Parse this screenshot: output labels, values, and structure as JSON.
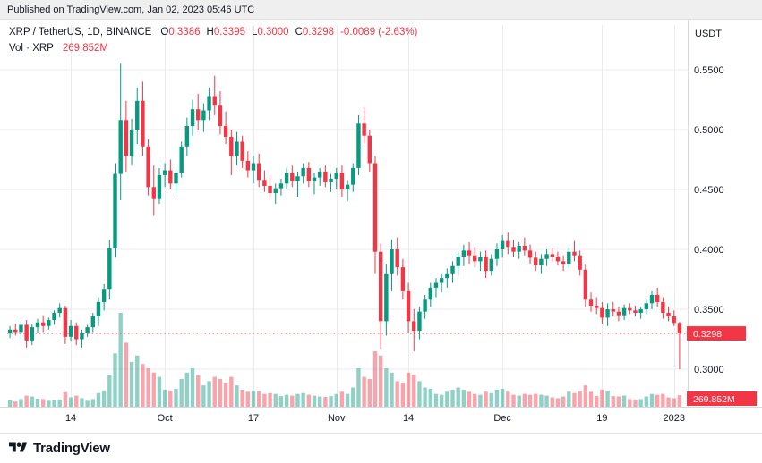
{
  "published_bar": {
    "text": "Published on TradingView.com, Jan 02, 2023 05:46 UTC"
  },
  "header": {
    "symbol": "XRP / TetherUS, 1D, BINANCE",
    "ohlc": [
      {
        "k": "O",
        "v": "0.3386"
      },
      {
        "k": "H",
        "v": "0.3395"
      },
      {
        "k": "L",
        "v": "0.3000"
      },
      {
        "k": "C",
        "v": "0.3298"
      }
    ],
    "change": "-0.0089 (-2.63%)",
    "volume_label": "Vol · XRP",
    "volume_value": "269.852M",
    "currency": "USDT"
  },
  "price_axis": {
    "labels": [
      "0.5500",
      "0.5000",
      "0.4500",
      "0.4000",
      "0.3500",
      "0.3000"
    ],
    "current_price_badge": "0.3298",
    "volume_badge": "269.852M"
  },
  "time_axis": {
    "ticks": [
      {
        "i": 11,
        "label": "14"
      },
      {
        "i": 28,
        "label": "Oct"
      },
      {
        "i": 44,
        "label": "17"
      },
      {
        "i": 59,
        "label": "Nov"
      },
      {
        "i": 72,
        "label": "14"
      },
      {
        "i": 89,
        "label": "Dec"
      },
      {
        "i": 107,
        "label": "19"
      },
      {
        "i": 120,
        "label": "2023"
      }
    ]
  },
  "footer": {
    "brand": "TradingView"
  },
  "colors": {
    "up": "#089981",
    "down": "#F23645",
    "up_volume": "rgba(8,153,129,0.45)",
    "down_volume": "rgba(242,54,69,0.45)",
    "grid": "#e9ebf0",
    "axis_line": "#d6d9e0",
    "badge": "#F23645",
    "text": "#131722"
  },
  "chart_data": {
    "type": "candlestick",
    "title": "XRP / TetherUS, 1D, BINANCE",
    "interval": "1D",
    "start_date": "2022-09-03",
    "currency": "USDT",
    "y_range": [
      0.3,
      0.55
    ],
    "grid": true,
    "last": {
      "open": 0.3386,
      "high": 0.3395,
      "low": 0.3,
      "close": 0.3298,
      "change": -0.0089,
      "change_pct": -2.63,
      "volume_m": 269.852
    },
    "volume_unit": "millions",
    "columns": [
      "open",
      "high",
      "low",
      "close",
      "volume_m"
    ],
    "candles": [
      [
        0.33,
        0.336,
        0.326,
        0.333,
        150
      ],
      [
        0.333,
        0.338,
        0.328,
        0.331,
        120
      ],
      [
        0.331,
        0.34,
        0.325,
        0.337,
        180
      ],
      [
        0.337,
        0.341,
        0.318,
        0.324,
        260
      ],
      [
        0.324,
        0.338,
        0.32,
        0.335,
        240
      ],
      [
        0.335,
        0.342,
        0.33,
        0.339,
        190
      ],
      [
        0.339,
        0.345,
        0.331,
        0.336,
        180
      ],
      [
        0.336,
        0.343,
        0.333,
        0.341,
        140
      ],
      [
        0.341,
        0.349,
        0.337,
        0.347,
        150
      ],
      [
        0.347,
        0.355,
        0.343,
        0.351,
        170
      ],
      [
        0.351,
        0.353,
        0.321,
        0.327,
        340
      ],
      [
        0.327,
        0.341,
        0.323,
        0.336,
        220
      ],
      [
        0.336,
        0.339,
        0.32,
        0.325,
        260
      ],
      [
        0.325,
        0.333,
        0.318,
        0.33,
        200
      ],
      [
        0.33,
        0.337,
        0.327,
        0.335,
        140
      ],
      [
        0.335,
        0.347,
        0.331,
        0.344,
        180
      ],
      [
        0.344,
        0.36,
        0.336,
        0.356,
        320
      ],
      [
        0.356,
        0.371,
        0.349,
        0.367,
        380
      ],
      [
        0.367,
        0.408,
        0.358,
        0.401,
        750
      ],
      [
        0.401,
        0.472,
        0.393,
        0.463,
        1250
      ],
      [
        0.463,
        0.555,
        0.441,
        0.508,
        2200
      ],
      [
        0.508,
        0.524,
        0.465,
        0.478,
        1500
      ],
      [
        0.478,
        0.509,
        0.47,
        0.5,
        1050
      ],
      [
        0.5,
        0.535,
        0.488,
        0.524,
        1200
      ],
      [
        0.524,
        0.54,
        0.478,
        0.486,
        1000
      ],
      [
        0.486,
        0.492,
        0.445,
        0.452,
        900
      ],
      [
        0.452,
        0.47,
        0.428,
        0.442,
        800
      ],
      [
        0.442,
        0.468,
        0.438,
        0.462,
        700
      ],
      [
        0.462,
        0.472,
        0.452,
        0.466,
        400
      ],
      [
        0.466,
        0.475,
        0.45,
        0.455,
        380
      ],
      [
        0.455,
        0.468,
        0.446,
        0.464,
        420
      ],
      [
        0.464,
        0.49,
        0.46,
        0.486,
        650
      ],
      [
        0.486,
        0.51,
        0.478,
        0.503,
        800
      ],
      [
        0.503,
        0.525,
        0.495,
        0.517,
        900
      ],
      [
        0.517,
        0.53,
        0.5,
        0.508,
        750
      ],
      [
        0.508,
        0.522,
        0.498,
        0.516,
        500
      ],
      [
        0.516,
        0.535,
        0.508,
        0.528,
        600
      ],
      [
        0.528,
        0.545,
        0.512,
        0.52,
        700
      ],
      [
        0.52,
        0.532,
        0.496,
        0.503,
        650
      ],
      [
        0.503,
        0.515,
        0.488,
        0.494,
        550
      ],
      [
        0.494,
        0.5,
        0.462,
        0.478,
        700
      ],
      [
        0.478,
        0.498,
        0.47,
        0.49,
        500
      ],
      [
        0.49,
        0.495,
        0.468,
        0.474,
        400
      ],
      [
        0.474,
        0.482,
        0.46,
        0.466,
        350
      ],
      [
        0.466,
        0.478,
        0.455,
        0.472,
        380
      ],
      [
        0.472,
        0.48,
        0.452,
        0.458,
        360
      ],
      [
        0.458,
        0.466,
        0.448,
        0.453,
        300
      ],
      [
        0.453,
        0.462,
        0.442,
        0.447,
        320
      ],
      [
        0.447,
        0.455,
        0.438,
        0.451,
        300
      ],
      [
        0.451,
        0.459,
        0.445,
        0.455,
        250
      ],
      [
        0.455,
        0.468,
        0.45,
        0.464,
        280
      ],
      [
        0.464,
        0.47,
        0.452,
        0.457,
        260
      ],
      [
        0.457,
        0.465,
        0.444,
        0.461,
        300
      ],
      [
        0.461,
        0.472,
        0.455,
        0.468,
        320
      ],
      [
        0.468,
        0.473,
        0.452,
        0.457,
        280
      ],
      [
        0.457,
        0.464,
        0.446,
        0.46,
        260
      ],
      [
        0.46,
        0.468,
        0.453,
        0.465,
        240
      ],
      [
        0.465,
        0.47,
        0.452,
        0.456,
        230
      ],
      [
        0.456,
        0.463,
        0.448,
        0.459,
        250
      ],
      [
        0.459,
        0.468,
        0.45,
        0.464,
        300
      ],
      [
        0.464,
        0.47,
        0.444,
        0.45,
        350
      ],
      [
        0.45,
        0.458,
        0.44,
        0.454,
        300
      ],
      [
        0.454,
        0.472,
        0.448,
        0.468,
        450
      ],
      [
        0.468,
        0.512,
        0.462,
        0.505,
        900
      ],
      [
        0.505,
        0.518,
        0.488,
        0.495,
        700
      ],
      [
        0.495,
        0.5,
        0.465,
        0.472,
        650
      ],
      [
        0.472,
        0.478,
        0.38,
        0.398,
        1300
      ],
      [
        0.398,
        0.405,
        0.317,
        0.34,
        1200
      ],
      [
        0.34,
        0.388,
        0.328,
        0.38,
        900
      ],
      [
        0.38,
        0.408,
        0.365,
        0.4,
        800
      ],
      [
        0.4,
        0.41,
        0.378,
        0.385,
        600
      ],
      [
        0.385,
        0.392,
        0.358,
        0.365,
        550
      ],
      [
        0.365,
        0.372,
        0.33,
        0.34,
        800
      ],
      [
        0.34,
        0.35,
        0.315,
        0.332,
        750
      ],
      [
        0.332,
        0.352,
        0.325,
        0.348,
        600
      ],
      [
        0.348,
        0.362,
        0.342,
        0.358,
        450
      ],
      [
        0.358,
        0.372,
        0.352,
        0.368,
        420
      ],
      [
        0.368,
        0.376,
        0.36,
        0.372,
        300
      ],
      [
        0.372,
        0.38,
        0.364,
        0.376,
        280
      ],
      [
        0.376,
        0.384,
        0.368,
        0.38,
        350
      ],
      [
        0.38,
        0.39,
        0.372,
        0.386,
        400
      ],
      [
        0.386,
        0.398,
        0.378,
        0.394,
        450
      ],
      [
        0.394,
        0.404,
        0.386,
        0.399,
        400
      ],
      [
        0.399,
        0.406,
        0.388,
        0.395,
        350
      ],
      [
        0.395,
        0.402,
        0.385,
        0.39,
        300
      ],
      [
        0.39,
        0.398,
        0.382,
        0.394,
        280
      ],
      [
        0.394,
        0.399,
        0.376,
        0.382,
        350
      ],
      [
        0.382,
        0.396,
        0.378,
        0.392,
        320
      ],
      [
        0.392,
        0.405,
        0.386,
        0.4,
        400
      ],
      [
        0.4,
        0.412,
        0.393,
        0.407,
        420
      ],
      [
        0.407,
        0.414,
        0.396,
        0.402,
        350
      ],
      [
        0.402,
        0.408,
        0.394,
        0.398,
        280
      ],
      [
        0.398,
        0.406,
        0.392,
        0.403,
        260
      ],
      [
        0.403,
        0.41,
        0.395,
        0.399,
        300
      ],
      [
        0.399,
        0.404,
        0.388,
        0.393,
        280
      ],
      [
        0.393,
        0.398,
        0.382,
        0.387,
        300
      ],
      [
        0.387,
        0.396,
        0.38,
        0.392,
        280
      ],
      [
        0.392,
        0.4,
        0.386,
        0.396,
        260
      ],
      [
        0.396,
        0.401,
        0.39,
        0.394,
        220
      ],
      [
        0.394,
        0.398,
        0.387,
        0.39,
        200
      ],
      [
        0.39,
        0.395,
        0.382,
        0.388,
        240
      ],
      [
        0.388,
        0.402,
        0.384,
        0.398,
        350
      ],
      [
        0.398,
        0.407,
        0.39,
        0.395,
        320
      ],
      [
        0.395,
        0.399,
        0.378,
        0.383,
        360
      ],
      [
        0.383,
        0.388,
        0.352,
        0.358,
        500
      ],
      [
        0.358,
        0.364,
        0.348,
        0.353,
        350
      ],
      [
        0.353,
        0.36,
        0.346,
        0.351,
        250
      ],
      [
        0.351,
        0.356,
        0.338,
        0.343,
        400
      ],
      [
        0.343,
        0.355,
        0.336,
        0.35,
        380
      ],
      [
        0.35,
        0.356,
        0.344,
        0.348,
        250
      ],
      [
        0.348,
        0.352,
        0.34,
        0.345,
        240
      ],
      [
        0.345,
        0.354,
        0.341,
        0.351,
        260
      ],
      [
        0.351,
        0.355,
        0.346,
        0.349,
        180
      ],
      [
        0.349,
        0.353,
        0.344,
        0.347,
        170
      ],
      [
        0.347,
        0.352,
        0.342,
        0.35,
        180
      ],
      [
        0.35,
        0.358,
        0.346,
        0.355,
        240
      ],
      [
        0.355,
        0.365,
        0.35,
        0.362,
        300
      ],
      [
        0.362,
        0.368,
        0.352,
        0.356,
        280
      ],
      [
        0.356,
        0.36,
        0.342,
        0.347,
        300
      ],
      [
        0.347,
        0.352,
        0.34,
        0.344,
        220
      ],
      [
        0.344,
        0.349,
        0.336,
        0.3386,
        200
      ],
      [
        0.3386,
        0.3395,
        0.3,
        0.3298,
        269.852
      ]
    ]
  }
}
